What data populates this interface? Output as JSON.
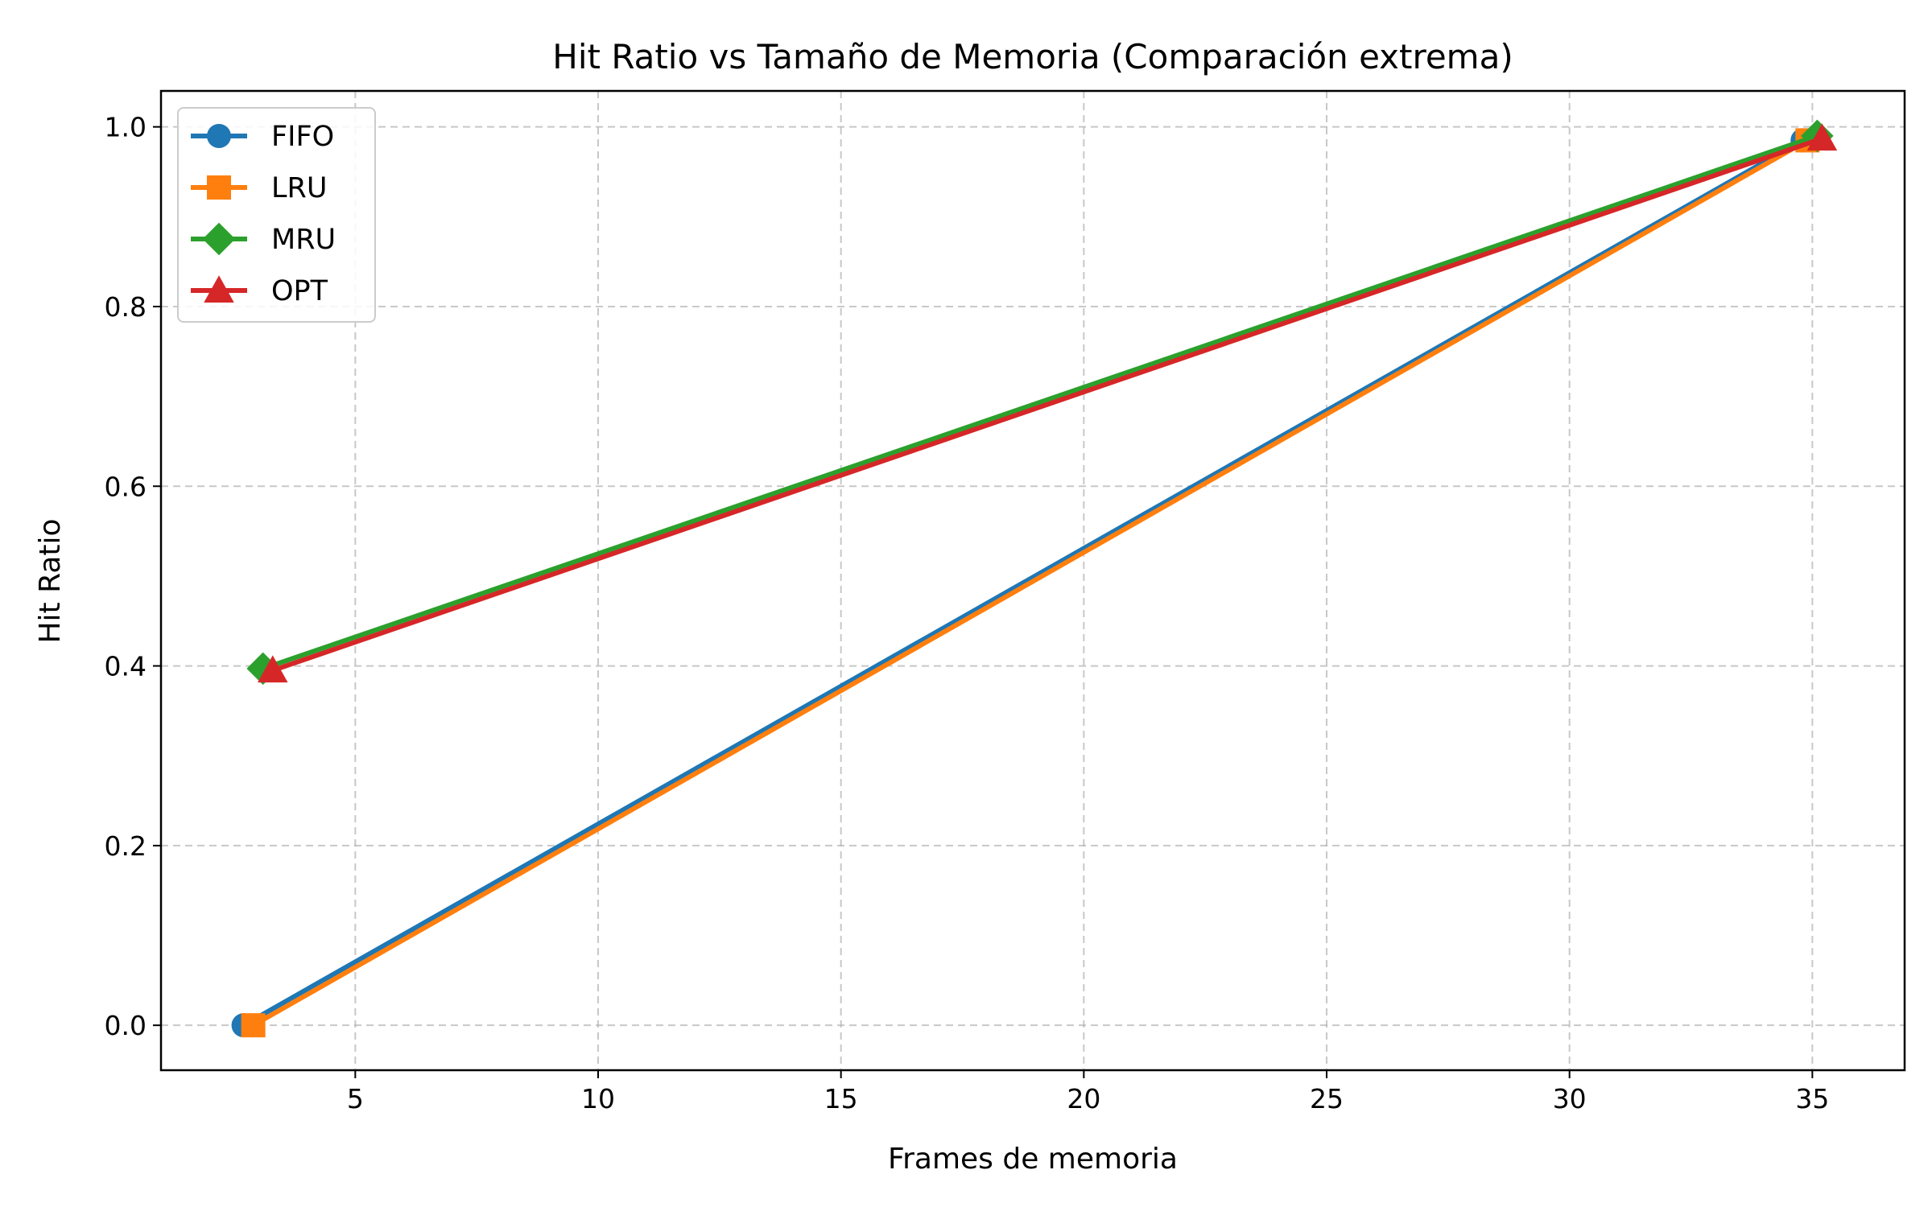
{
  "chart_data": {
    "type": "line",
    "title": "Hit Ratio vs Tamaño de Memoria (Comparación extrema)",
    "xlabel": "Frames de memoria",
    "ylabel": "Hit Ratio",
    "xlim": [
      1.0,
      36.9
    ],
    "ylim": [
      -0.05,
      1.04
    ],
    "xticks": [
      5,
      10,
      15,
      20,
      25,
      30,
      35
    ],
    "yticks": [
      0.0,
      0.2,
      0.4,
      0.6,
      0.8,
      1.0
    ],
    "grid": true,
    "legend_position": "top-left",
    "series": [
      {
        "name": "FIFO",
        "color": "#1f77b4",
        "marker": "circle",
        "x": [
          2.7,
          34.8
        ],
        "y": [
          0.0,
          0.985
        ]
      },
      {
        "name": "LRU",
        "color": "#ff7f0e",
        "marker": "square",
        "x": [
          2.9,
          34.9
        ],
        "y": [
          0.0,
          0.985
        ]
      },
      {
        "name": "MRU",
        "color": "#2ca02c",
        "marker": "diamond",
        "x": [
          3.1,
          35.1
        ],
        "y": [
          0.397,
          0.99
        ]
      },
      {
        "name": "OPT",
        "color": "#d62728",
        "marker": "triangle",
        "x": [
          3.3,
          35.2
        ],
        "y": [
          0.395,
          0.987
        ]
      }
    ]
  }
}
